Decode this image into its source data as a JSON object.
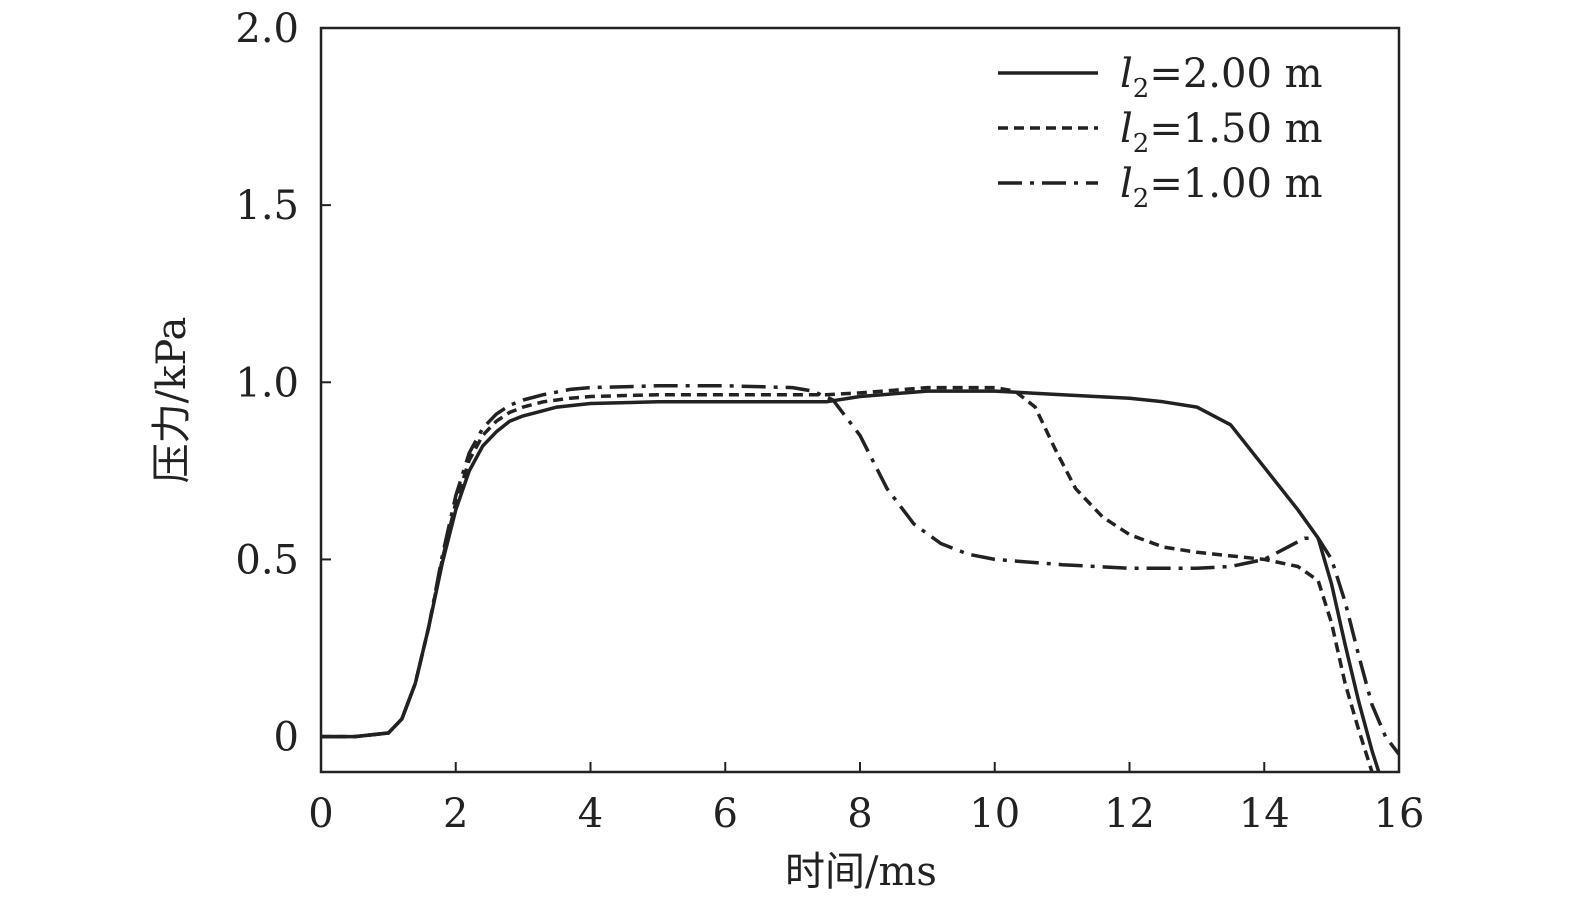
{
  "chart_data": {
    "type": "line",
    "title": "",
    "xlabel": "时间/ms",
    "ylabel": "压力/kPa",
    "xlim": [
      0,
      16
    ],
    "ylim": [
      -0.1,
      2.0
    ],
    "xticks": [
      0,
      2,
      4,
      6,
      8,
      10,
      12,
      14,
      16
    ],
    "xtick_labels": [
      "0",
      "2",
      "4",
      "6",
      "8",
      "10",
      "12",
      "14",
      "16"
    ],
    "yticks": [
      0,
      0.5,
      1.0,
      1.5,
      2.0
    ],
    "ytick_labels": [
      "0",
      "0.5",
      "1.0",
      "1.5",
      "2.0"
    ],
    "grid": false,
    "legend_position": "top-right",
    "series": [
      {
        "name": "l2=2.00 m",
        "legend_var": "l",
        "legend_sub": "2",
        "legend_rest": "=2.00 m",
        "style": "solid",
        "color": "#222222",
        "x": [
          0,
          0.5,
          1.0,
          1.2,
          1.4,
          1.6,
          1.8,
          2.0,
          2.2,
          2.4,
          2.6,
          2.8,
          3.0,
          3.2,
          3.5,
          4.0,
          5.0,
          6.0,
          7.0,
          7.5,
          8.0,
          9.0,
          10.0,
          11.0,
          12.0,
          12.5,
          13.0,
          13.5,
          14.0,
          14.5,
          14.8,
          15.0,
          15.2,
          15.4,
          15.6,
          15.7
        ],
        "y": [
          0,
          0,
          0.01,
          0.05,
          0.15,
          0.31,
          0.49,
          0.64,
          0.75,
          0.82,
          0.86,
          0.89,
          0.905,
          0.915,
          0.93,
          0.94,
          0.945,
          0.945,
          0.945,
          0.945,
          0.96,
          0.975,
          0.975,
          0.965,
          0.955,
          0.945,
          0.93,
          0.88,
          0.76,
          0.64,
          0.56,
          0.43,
          0.26,
          0.1,
          -0.04,
          -0.1
        ]
      },
      {
        "name": "l2=1.50 m",
        "legend_var": "l",
        "legend_sub": "2",
        "legend_rest": "=1.50 m",
        "style": "dashed",
        "color": "#222222",
        "x": [
          0,
          0.5,
          1.0,
          1.2,
          1.4,
          1.6,
          1.8,
          2.0,
          2.2,
          2.4,
          2.6,
          2.8,
          3.0,
          3.3,
          3.7,
          4.0,
          5.0,
          6.0,
          7.0,
          7.5,
          8.0,
          9.0,
          10.0,
          10.3,
          10.6,
          10.9,
          11.2,
          11.6,
          12.0,
          12.5,
          13.0,
          13.5,
          14.0,
          14.5,
          14.8,
          15.0,
          15.2,
          15.4,
          15.6
        ],
        "y": [
          0,
          0,
          0.01,
          0.05,
          0.15,
          0.31,
          0.5,
          0.66,
          0.78,
          0.85,
          0.89,
          0.915,
          0.93,
          0.945,
          0.955,
          0.96,
          0.965,
          0.965,
          0.965,
          0.965,
          0.97,
          0.985,
          0.985,
          0.975,
          0.93,
          0.81,
          0.7,
          0.62,
          0.57,
          0.535,
          0.52,
          0.51,
          0.5,
          0.48,
          0.44,
          0.32,
          0.15,
          0.02,
          -0.1
        ]
      },
      {
        "name": "l2=1.00 m",
        "legend_var": "l",
        "legend_sub": "2",
        "legend_rest": "=1.00 m",
        "style": "dashdot",
        "color": "#222222",
        "x": [
          0,
          0.5,
          1.0,
          1.2,
          1.4,
          1.6,
          1.8,
          2.0,
          2.2,
          2.4,
          2.6,
          2.8,
          3.0,
          3.3,
          3.7,
          4.0,
          5.0,
          6.0,
          7.0,
          7.3,
          7.6,
          8.0,
          8.4,
          8.8,
          9.2,
          9.6,
          10.0,
          11.0,
          12.0,
          13.0,
          13.5,
          14.0,
          14.3,
          14.6,
          14.8,
          15.0,
          15.2,
          15.4,
          15.6,
          15.8,
          16.0
        ],
        "y": [
          0,
          0,
          0.01,
          0.05,
          0.15,
          0.31,
          0.51,
          0.68,
          0.8,
          0.87,
          0.91,
          0.935,
          0.95,
          0.965,
          0.98,
          0.985,
          0.99,
          0.99,
          0.985,
          0.975,
          0.95,
          0.85,
          0.7,
          0.6,
          0.545,
          0.515,
          0.5,
          0.485,
          0.475,
          0.475,
          0.48,
          0.5,
          0.53,
          0.56,
          0.56,
          0.5,
          0.38,
          0.23,
          0.09,
          0.0,
          -0.05
        ]
      }
    ]
  }
}
